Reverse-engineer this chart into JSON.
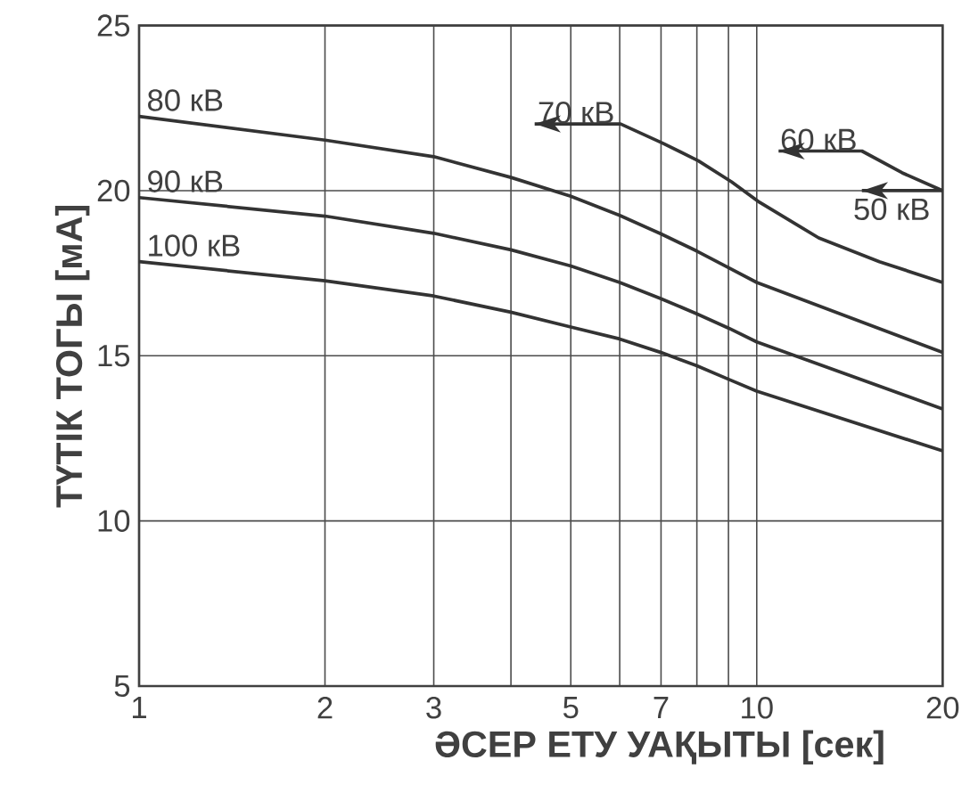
{
  "chart_data": {
    "type": "line",
    "xlabel": "ӘСЕР ЕТУ УАҚЫТЫ [сек]",
    "ylabel": "ТҮТІК ТОГЫ [мА]",
    "log": "x",
    "grid": true,
    "marker": "none",
    "line_style": "solid",
    "xlim": [
      1,
      20
    ],
    "ylim": [
      5,
      25
    ],
    "xticks": [
      1,
      2,
      3,
      {
        "value": 4,
        "label": null
      },
      5,
      {
        "value": 6,
        "label": null
      },
      7,
      {
        "value": 8,
        "label": null
      },
      {
        "value": 9,
        "label": null
      },
      10,
      20
    ],
    "yticks": [
      5,
      10,
      15,
      20,
      25
    ],
    "series": [
      {
        "color": "#333333",
        "x": [
          1,
          2,
          3,
          4,
          5,
          6,
          7,
          8,
          9,
          10,
          20
        ],
        "values": [
          22.25,
          21.53,
          21.03,
          20.4,
          19.83,
          19.25,
          18.69,
          18.17,
          17.67,
          17.22,
          15.1
        ]
      },
      {
        "color": "#333333",
        "x": [
          1,
          2,
          3,
          4,
          5,
          6,
          7,
          8,
          9,
          10,
          20
        ],
        "values": [
          19.79,
          19.23,
          18.71,
          18.21,
          17.72,
          17.22,
          16.73,
          16.27,
          15.84,
          15.42,
          13.39
        ]
      },
      {
        "color": "#333333",
        "x": [
          1,
          2,
          3,
          4,
          5,
          6,
          7,
          8,
          9,
          10,
          20
        ],
        "values": [
          17.85,
          17.27,
          16.81,
          16.32,
          15.87,
          15.51,
          15.1,
          14.7,
          14.29,
          13.93,
          12.12
        ]
      },
      {
        "color": "#333333",
        "x": [
          4.37,
          6.02,
          7.04,
          8.05,
          9.1,
          10.1,
          12.6,
          15.8,
          20
        ],
        "values": [
          22.02,
          22.02,
          21.44,
          20.9,
          20.27,
          19.65,
          18.57,
          17.85,
          17.22
        ]
      },
      {
        "color": "#333333",
        "x": [
          10.85,
          14.8,
          17.2,
          20
        ],
        "values": [
          21.2,
          21.2,
          20.54,
          20.0
        ]
      },
      {
        "color": "#333333",
        "x": [
          14.8,
          20
        ],
        "values": [
          20.0,
          20.0
        ]
      }
    ],
    "annotations": [
      {
        "text": "80 кВ",
        "x": 1,
        "y": 22.25
      },
      {
        "text": "90 кВ",
        "x": 1,
        "y": 19.79
      },
      {
        "text": "100 кВ",
        "x": 1,
        "y": 17.85
      },
      {
        "text": "70 кВ",
        "x": 5.1,
        "y": 22.02
      },
      {
        "text": "60 кВ",
        "x": 12.6,
        "y": 21.2
      },
      {
        "text": "50 кВ",
        "x": 20,
        "y": 20.0
      }
    ]
  }
}
